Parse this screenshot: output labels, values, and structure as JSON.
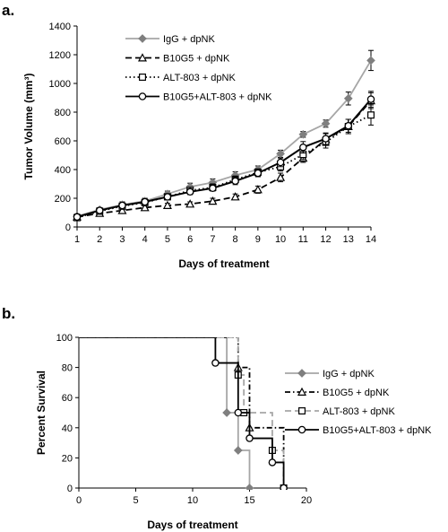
{
  "chart_data": [
    {
      "panel_label": "a.",
      "type": "line",
      "xlabel": "Days of treatment",
      "ylabel": "Tumor Volume (mm³)",
      "xlim": [
        1,
        14
      ],
      "ylim": [
        0,
        1400
      ],
      "x_ticks": [
        1,
        2,
        3,
        4,
        5,
        6,
        7,
        8,
        9,
        10,
        11,
        12,
        13,
        14
      ],
      "y_ticks": [
        0,
        200,
        400,
        600,
        800,
        1000,
        1200,
        1400
      ],
      "grid": false,
      "legend_position": "top-left",
      "x": [
        1,
        2,
        3,
        4,
        5,
        6,
        7,
        8,
        9,
        10,
        11,
        12,
        13,
        14
      ],
      "series": [
        {
          "name": "IgG + dpNK",
          "marker": "diamond",
          "line": "solid",
          "color": "#a6a6a6",
          "values": [
            75,
            120,
            155,
            180,
            230,
            280,
            310,
            360,
            400,
            510,
            645,
            720,
            895,
            1160
          ],
          "errors": [
            15,
            15,
            20,
            20,
            20,
            25,
            25,
            25,
            25,
            25,
            20,
            25,
            45,
            70
          ]
        },
        {
          "name": "B10G5 + dpNK",
          "marker": "triangle",
          "line": "dashed",
          "color": "#000000",
          "values": [
            70,
            95,
            115,
            135,
            150,
            160,
            180,
            210,
            260,
            345,
            480,
            610,
            700,
            880
          ],
          "errors": [
            10,
            10,
            15,
            15,
            15,
            15,
            20,
            20,
            25,
            30,
            30,
            40,
            50,
            55
          ]
        },
        {
          "name": "ALT-803 + dpNK",
          "marker": "square",
          "line": "dotted",
          "color": "#000000",
          "values": [
            65,
            110,
            145,
            170,
            210,
            255,
            275,
            330,
            380,
            420,
            505,
            590,
            700,
            780
          ],
          "errors": [
            10,
            15,
            20,
            20,
            20,
            20,
            25,
            25,
            25,
            30,
            35,
            40,
            50,
            70
          ]
        },
        {
          "name": "B10G5+ALT-803 + dpNK",
          "marker": "circle",
          "line": "solid",
          "color": "#000000",
          "values": [
            70,
            115,
            150,
            175,
            210,
            245,
            270,
            320,
            375,
            450,
            555,
            615,
            705,
            890
          ],
          "errors": [
            10,
            15,
            15,
            20,
            20,
            20,
            20,
            25,
            25,
            30,
            40,
            40,
            45,
            55
          ]
        }
      ]
    },
    {
      "panel_label": "b.",
      "type": "step",
      "xlabel": "Days of treatment",
      "ylabel": "Percent Survival",
      "xlim": [
        0,
        20
      ],
      "ylim": [
        0,
        100
      ],
      "x_ticks": [
        0,
        5,
        10,
        15,
        20
      ],
      "y_ticks": [
        0,
        20,
        40,
        60,
        80,
        100
      ],
      "grid": false,
      "legend_position": "right",
      "series": [
        {
          "name": "IgG + dpNK",
          "marker": "diamond",
          "line": "solid",
          "color": "#a6a6a6",
          "steps": [
            [
              0,
              100
            ],
            [
              13,
              50
            ],
            [
              14,
              25
            ],
            [
              15,
              0
            ]
          ]
        },
        {
          "name": "B10G5 + dpNK",
          "marker": "triangle",
          "line": "dash-dot",
          "color": "#000000",
          "steps": [
            [
              0,
              100
            ],
            [
              14,
              80
            ],
            [
              15,
              40
            ],
            [
              18,
              0
            ]
          ]
        },
        {
          "name": "ALT-803 + dpNK",
          "marker": "square",
          "line": "dashed",
          "color": "#a6a6a6",
          "steps": [
            [
              0,
              100
            ],
            [
              14,
              75
            ],
            [
              14.5,
              50
            ],
            [
              17,
              25
            ],
            [
              18,
              0
            ]
          ]
        },
        {
          "name": "B10G5+ALT-803 + dpNK",
          "marker": "circle",
          "line": "solid",
          "color": "#000000",
          "steps": [
            [
              0,
              100
            ],
            [
              12,
              83
            ],
            [
              14,
              50
            ],
            [
              15,
              33
            ],
            [
              17,
              17
            ],
            [
              18,
              0
            ]
          ]
        }
      ]
    }
  ]
}
